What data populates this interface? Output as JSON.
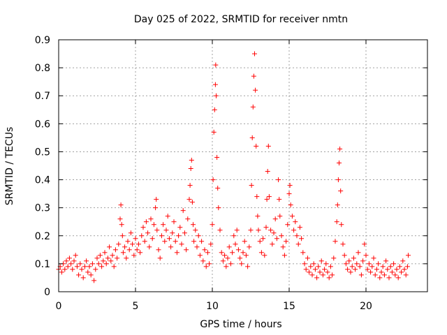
{
  "chart_data": {
    "type": "scatter",
    "title": "Day 025 of 2022, SRMTID for receiver nmtn",
    "xlabel": "GPS time / hours",
    "ylabel": "SRMTID / TECUs",
    "xlim": [
      0,
      24
    ],
    "ylim": [
      0,
      0.9
    ],
    "xticks": [
      0,
      5,
      10,
      15,
      20
    ],
    "yticks": [
      0,
      0.1,
      0.2,
      0.3,
      0.4,
      0.5,
      0.6,
      0.7,
      0.8,
      0.9
    ],
    "xtick_labels": [
      "0",
      "5",
      "10",
      "15",
      "20"
    ],
    "ytick_labels": [
      "0",
      "0.1",
      "0.2",
      "0.3",
      "0.4",
      "0.5",
      "0.6",
      "0.7",
      "0.8",
      "0.9"
    ],
    "grid": true,
    "marker": "+",
    "color": "#ff0000",
    "series": [
      {
        "name": "SRMTID",
        "points": [
          [
            0.0,
            0.08
          ],
          [
            0.1,
            0.09
          ],
          [
            0.2,
            0.07
          ],
          [
            0.3,
            0.1
          ],
          [
            0.4,
            0.08
          ],
          [
            0.5,
            0.11
          ],
          [
            0.6,
            0.09
          ],
          [
            0.7,
            0.12
          ],
          [
            0.8,
            0.1
          ],
          [
            0.9,
            0.08
          ],
          [
            1.0,
            0.11
          ],
          [
            1.1,
            0.13
          ],
          [
            1.2,
            0.09
          ],
          [
            1.3,
            0.06
          ],
          [
            1.4,
            0.1
          ],
          [
            1.5,
            0.08
          ],
          [
            1.6,
            0.05
          ],
          [
            1.7,
            0.09
          ],
          [
            1.8,
            0.11
          ],
          [
            1.9,
            0.07
          ],
          [
            2.0,
            0.09
          ],
          [
            2.1,
            0.06
          ],
          [
            2.2,
            0.1
          ],
          [
            2.3,
            0.04
          ],
          [
            2.4,
            0.08
          ],
          [
            2.5,
            0.12
          ],
          [
            2.6,
            0.1
          ],
          [
            2.7,
            0.13
          ],
          [
            2.8,
            0.09
          ],
          [
            2.9,
            0.11
          ],
          [
            3.0,
            0.14
          ],
          [
            3.1,
            0.1
          ],
          [
            3.2,
            0.12
          ],
          [
            3.3,
            0.16
          ],
          [
            3.4,
            0.11
          ],
          [
            3.5,
            0.13
          ],
          [
            3.6,
            0.09
          ],
          [
            3.7,
            0.15
          ],
          [
            3.8,
            0.12
          ],
          [
            3.9,
            0.17
          ],
          [
            4.0,
            0.26
          ],
          [
            4.05,
            0.31
          ],
          [
            4.1,
            0.24
          ],
          [
            4.15,
            0.2
          ],
          [
            4.2,
            0.14
          ],
          [
            4.3,
            0.16
          ],
          [
            4.4,
            0.12
          ],
          [
            4.5,
            0.18
          ],
          [
            4.6,
            0.15
          ],
          [
            4.7,
            0.21
          ],
          [
            4.8,
            0.17
          ],
          [
            4.9,
            0.13
          ],
          [
            5.0,
            0.19
          ],
          [
            5.1,
            0.15
          ],
          [
            5.2,
            0.17
          ],
          [
            5.3,
            0.14
          ],
          [
            5.4,
            0.2
          ],
          [
            5.5,
            0.23
          ],
          [
            5.6,
            0.18
          ],
          [
            5.7,
            0.25
          ],
          [
            5.8,
            0.21
          ],
          [
            5.9,
            0.16
          ],
          [
            6.0,
            0.26
          ],
          [
            6.1,
            0.19
          ],
          [
            6.2,
            0.24
          ],
          [
            6.3,
            0.3
          ],
          [
            6.35,
            0.33
          ],
          [
            6.4,
            0.22
          ],
          [
            6.5,
            0.15
          ],
          [
            6.6,
            0.12
          ],
          [
            6.7,
            0.2
          ],
          [
            6.8,
            0.24
          ],
          [
            6.9,
            0.18
          ],
          [
            7.0,
            0.22
          ],
          [
            7.1,
            0.27
          ],
          [
            7.2,
            0.19
          ],
          [
            7.3,
            0.16
          ],
          [
            7.4,
            0.21
          ],
          [
            7.5,
            0.25
          ],
          [
            7.6,
            0.18
          ],
          [
            7.7,
            0.14
          ],
          [
            7.8,
            0.2
          ],
          [
            7.9,
            0.23
          ],
          [
            8.0,
            0.17
          ],
          [
            8.1,
            0.29
          ],
          [
            8.2,
            0.21
          ],
          [
            8.3,
            0.15
          ],
          [
            8.4,
            0.26
          ],
          [
            8.5,
            0.33
          ],
          [
            8.55,
            0.38
          ],
          [
            8.6,
            0.44
          ],
          [
            8.65,
            0.47
          ],
          [
            8.7,
            0.32
          ],
          [
            8.75,
            0.24
          ],
          [
            8.8,
            0.18
          ],
          [
            8.9,
            0.22
          ],
          [
            9.0,
            0.16
          ],
          [
            9.1,
            0.2
          ],
          [
            9.2,
            0.13
          ],
          [
            9.3,
            0.18
          ],
          [
            9.4,
            0.11
          ],
          [
            9.5,
            0.15
          ],
          [
            9.6,
            0.09
          ],
          [
            9.7,
            0.14
          ],
          [
            9.8,
            0.1
          ],
          [
            9.9,
            0.17
          ],
          [
            10.0,
            0.24
          ],
          [
            10.05,
            0.4
          ],
          [
            10.1,
            0.57
          ],
          [
            10.15,
            0.65
          ],
          [
            10.2,
            0.74
          ],
          [
            10.22,
            0.81
          ],
          [
            10.25,
            0.7
          ],
          [
            10.3,
            0.48
          ],
          [
            10.35,
            0.37
          ],
          [
            10.4,
            0.3
          ],
          [
            10.5,
            0.22
          ],
          [
            10.6,
            0.14
          ],
          [
            10.7,
            0.11
          ],
          [
            10.8,
            0.13
          ],
          [
            10.9,
            0.09
          ],
          [
            11.0,
            0.12
          ],
          [
            11.1,
            0.16
          ],
          [
            11.2,
            0.1
          ],
          [
            11.3,
            0.14
          ],
          [
            11.4,
            0.2
          ],
          [
            11.5,
            0.17
          ],
          [
            11.6,
            0.22
          ],
          [
            11.7,
            0.15
          ],
          [
            11.8,
            0.12
          ],
          [
            11.9,
            0.1
          ],
          [
            12.0,
            0.14
          ],
          [
            12.1,
            0.18
          ],
          [
            12.2,
            0.13
          ],
          [
            12.3,
            0.09
          ],
          [
            12.4,
            0.16
          ],
          [
            12.5,
            0.22
          ],
          [
            12.55,
            0.38
          ],
          [
            12.6,
            0.55
          ],
          [
            12.65,
            0.66
          ],
          [
            12.7,
            0.77
          ],
          [
            12.75,
            0.85
          ],
          [
            12.8,
            0.72
          ],
          [
            12.85,
            0.52
          ],
          [
            12.9,
            0.34
          ],
          [
            12.95,
            0.27
          ],
          [
            13.0,
            0.22
          ],
          [
            13.1,
            0.18
          ],
          [
            13.2,
            0.14
          ],
          [
            13.3,
            0.19
          ],
          [
            13.4,
            0.13
          ],
          [
            13.5,
            0.23
          ],
          [
            13.55,
            0.33
          ],
          [
            13.6,
            0.43
          ],
          [
            13.65,
            0.52
          ],
          [
            13.7,
            0.34
          ],
          [
            13.8,
            0.22
          ],
          [
            13.9,
            0.17
          ],
          [
            14.0,
            0.21
          ],
          [
            14.1,
            0.26
          ],
          [
            14.2,
            0.19
          ],
          [
            14.3,
            0.4
          ],
          [
            14.35,
            0.33
          ],
          [
            14.4,
            0.27
          ],
          [
            14.5,
            0.2
          ],
          [
            14.6,
            0.16
          ],
          [
            14.7,
            0.13
          ],
          [
            14.8,
            0.18
          ],
          [
            14.9,
            0.24
          ],
          [
            15.0,
            0.35
          ],
          [
            15.05,
            0.38
          ],
          [
            15.1,
            0.31
          ],
          [
            15.2,
            0.27
          ],
          [
            15.3,
            0.22
          ],
          [
            15.4,
            0.25
          ],
          [
            15.5,
            0.2
          ],
          [
            15.6,
            0.17
          ],
          [
            15.7,
            0.23
          ],
          [
            15.8,
            0.19
          ],
          [
            15.9,
            0.14
          ],
          [
            16.0,
            0.1
          ],
          [
            16.1,
            0.08
          ],
          [
            16.2,
            0.12
          ],
          [
            16.3,
            0.07
          ],
          [
            16.4,
            0.09
          ],
          [
            16.5,
            0.06
          ],
          [
            16.6,
            0.1
          ],
          [
            16.7,
            0.08
          ],
          [
            16.8,
            0.05
          ],
          [
            16.9,
            0.09
          ],
          [
            17.0,
            0.07
          ],
          [
            17.1,
            0.11
          ],
          [
            17.2,
            0.06
          ],
          [
            17.3,
            0.08
          ],
          [
            17.4,
            0.1
          ],
          [
            17.5,
            0.07
          ],
          [
            17.6,
            0.05
          ],
          [
            17.7,
            0.09
          ],
          [
            17.8,
            0.06
          ],
          [
            17.9,
            0.12
          ],
          [
            18.0,
            0.18
          ],
          [
            18.1,
            0.25
          ],
          [
            18.15,
            0.31
          ],
          [
            18.2,
            0.4
          ],
          [
            18.25,
            0.46
          ],
          [
            18.3,
            0.51
          ],
          [
            18.35,
            0.36
          ],
          [
            18.4,
            0.24
          ],
          [
            18.5,
            0.17
          ],
          [
            18.6,
            0.13
          ],
          [
            18.7,
            0.1
          ],
          [
            18.8,
            0.08
          ],
          [
            18.9,
            0.11
          ],
          [
            19.0,
            0.07
          ],
          [
            19.1,
            0.09
          ],
          [
            19.2,
            0.12
          ],
          [
            19.3,
            0.08
          ],
          [
            19.4,
            0.1
          ],
          [
            19.5,
            0.14
          ],
          [
            19.6,
            0.09
          ],
          [
            19.7,
            0.06
          ],
          [
            19.8,
            0.11
          ],
          [
            19.9,
            0.17
          ],
          [
            20.0,
            0.13
          ],
          [
            20.1,
            0.08
          ],
          [
            20.2,
            0.1
          ],
          [
            20.3,
            0.07
          ],
          [
            20.4,
            0.09
          ],
          [
            20.5,
            0.12
          ],
          [
            20.6,
            0.06
          ],
          [
            20.7,
            0.08
          ],
          [
            20.8,
            0.1
          ],
          [
            20.9,
            0.05
          ],
          [
            21.0,
            0.07
          ],
          [
            21.1,
            0.09
          ],
          [
            21.2,
            0.06
          ],
          [
            21.3,
            0.11
          ],
          [
            21.4,
            0.08
          ],
          [
            21.5,
            0.05
          ],
          [
            21.6,
            0.09
          ],
          [
            21.7,
            0.07
          ],
          [
            21.8,
            0.1
          ],
          [
            21.9,
            0.06
          ],
          [
            22.0,
            0.08
          ],
          [
            22.1,
            0.05
          ],
          [
            22.2,
            0.09
          ],
          [
            22.3,
            0.07
          ],
          [
            22.4,
            0.11
          ],
          [
            22.5,
            0.08
          ],
          [
            22.6,
            0.06
          ],
          [
            22.7,
            0.09
          ],
          [
            22.75,
            0.13
          ]
        ]
      }
    ]
  }
}
